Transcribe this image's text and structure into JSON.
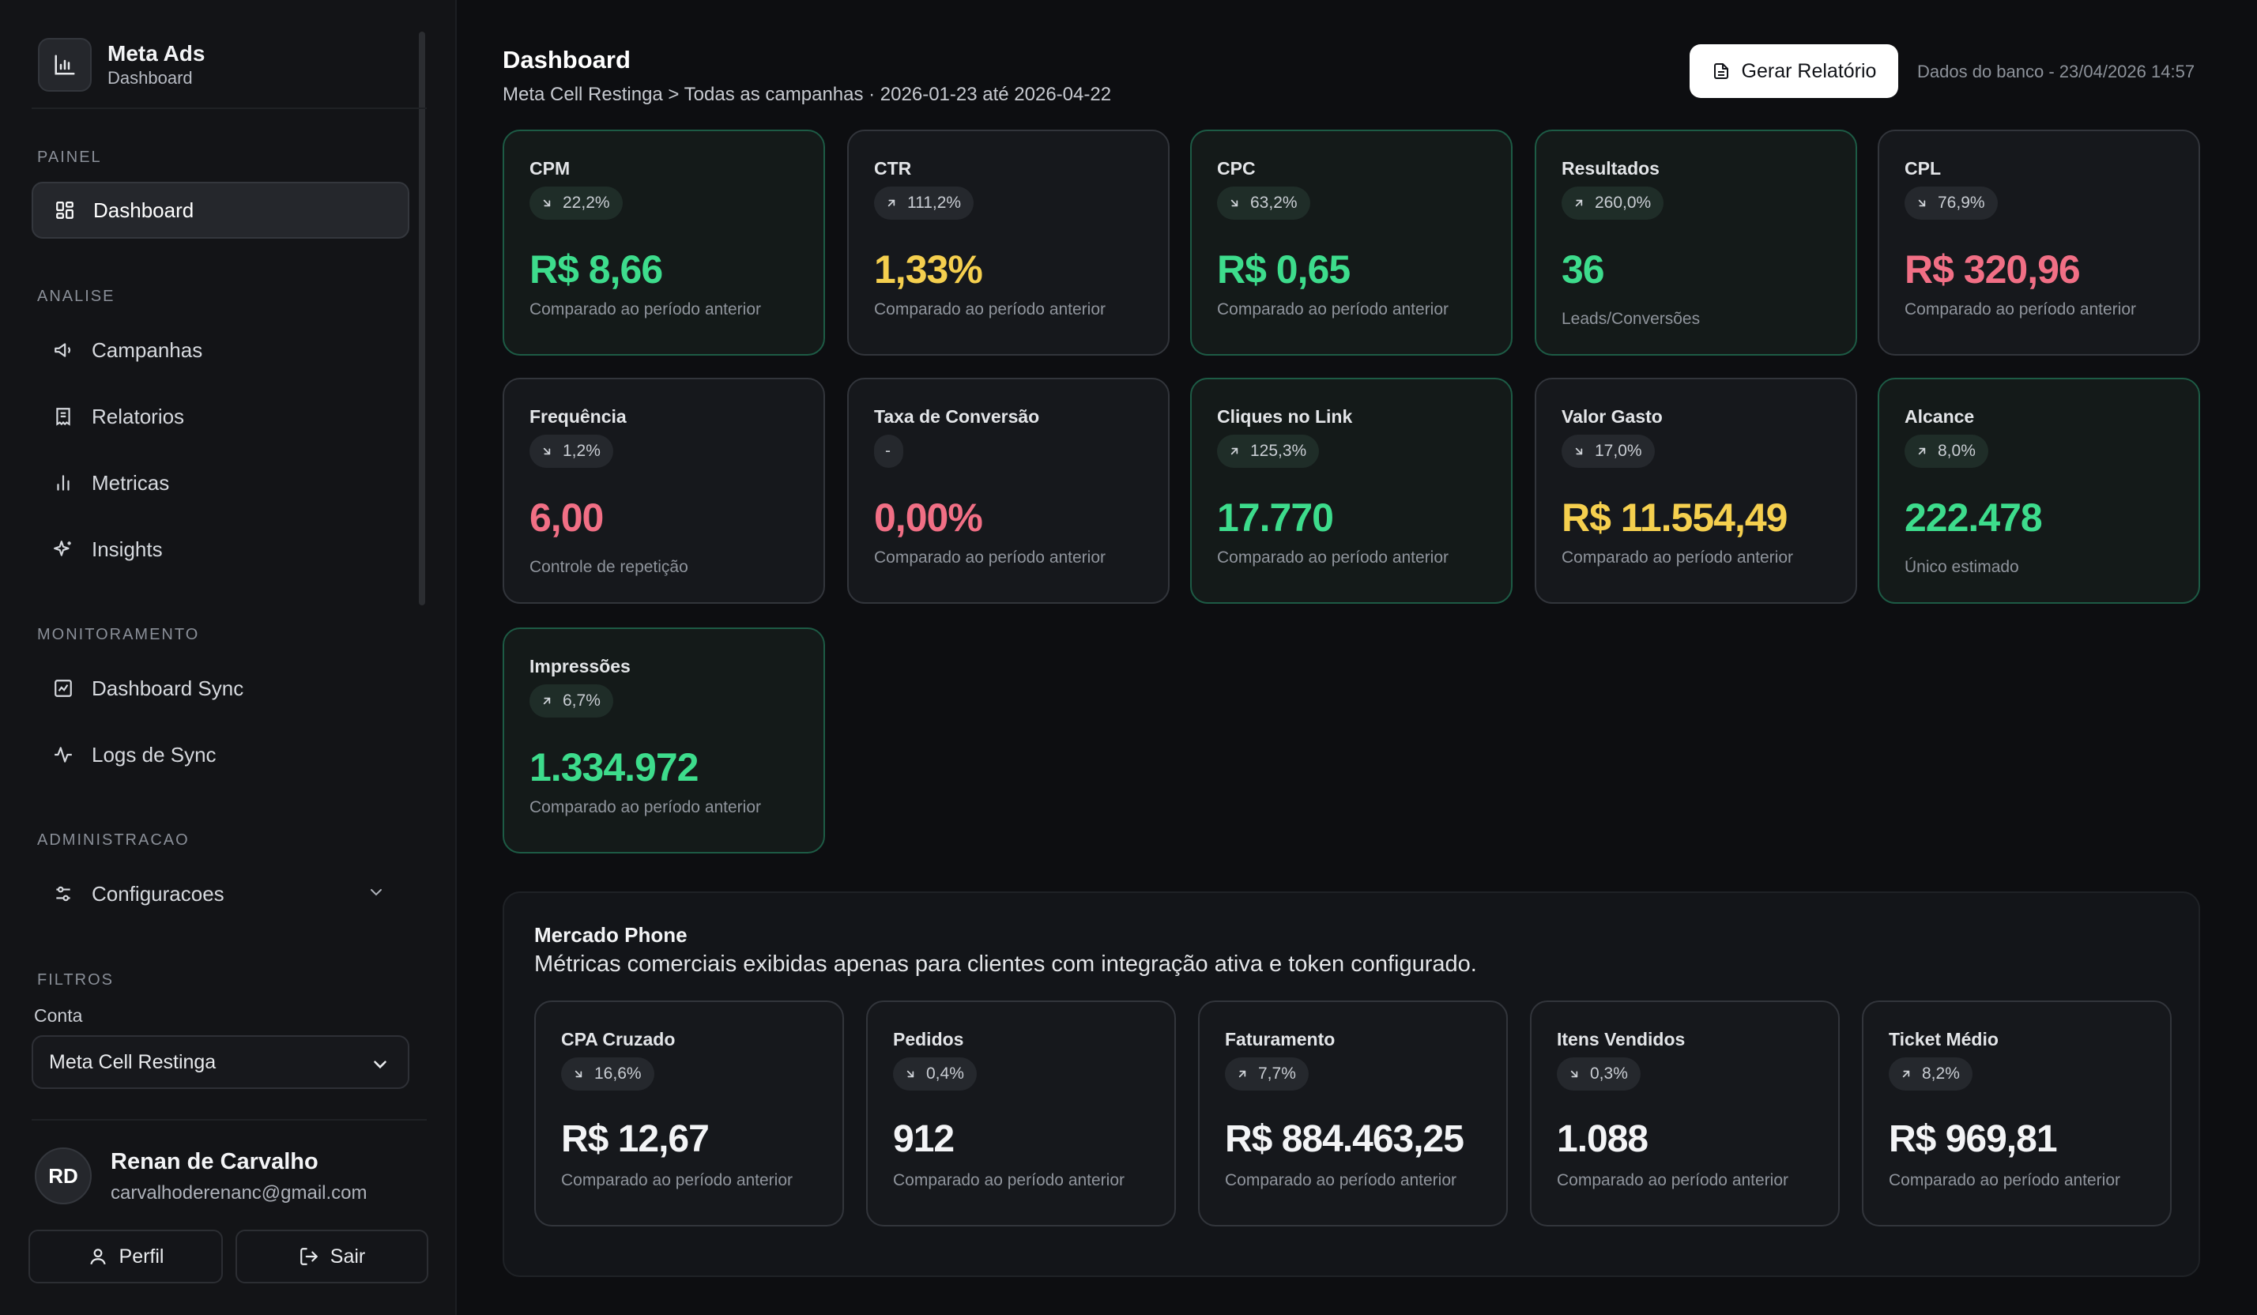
{
  "brand": {
    "title": "Meta Ads",
    "subtitle": "Dashboard"
  },
  "sidebar": {
    "sections": {
      "painel": "PAINEL",
      "analise": "ANALISE",
      "monitoramento": "MONITORAMENTO",
      "administracao": "ADMINISTRACAO",
      "filtros": "FILTROS"
    },
    "items": {
      "dashboard": "Dashboard",
      "campanhas": "Campanhas",
      "relatorios": "Relatorios",
      "metricas": "Metricas",
      "insights": "Insights",
      "dashboard_sync": "Dashboard Sync",
      "logs_sync": "Logs de Sync",
      "configuracoes": "Configuracoes"
    },
    "active": "dashboard",
    "filter": {
      "label": "Conta",
      "selected": "Meta Cell Restinga"
    }
  },
  "user": {
    "initials": "RD",
    "name": "Renan de Carvalho",
    "email": "carvalhoderenanc@gmail.com",
    "profile_label": "Perfil",
    "logout_label": "Sair"
  },
  "header": {
    "title": "Dashboard",
    "breadcrumb": "Meta Cell Restinga > Todas as campanhas · 2026-01-23 até 2026-04-22",
    "report_button": "Gerar Relatório",
    "db_info": "Dados do banco - 23/04/2026 14:57"
  },
  "metrics": [
    {
      "title": "CPM",
      "delta": "22,2%",
      "dir": "down",
      "value": "R$ 8,66",
      "sub": "Comparado ao período anterior",
      "color": "#3ddc8c"
    },
    {
      "title": "CTR",
      "delta": "111,2%",
      "dir": "up",
      "value": "1,33%",
      "sub": "Comparado ao período anterior",
      "color": "#f5cf4e"
    },
    {
      "title": "CPC",
      "delta": "63,2%",
      "dir": "down",
      "value": "R$ 0,65",
      "sub": "Comparado ao período anterior",
      "color": "#3ddc8c"
    },
    {
      "title": "Resultados",
      "delta": "260,0%",
      "dir": "up",
      "value": "36",
      "sub": "Leads/Conversões",
      "color": "#3ddc8c"
    },
    {
      "title": "CPL",
      "delta": "76,9%",
      "dir": "down",
      "value": "R$ 320,96",
      "sub": "Comparado ao período anterior",
      "color": "#f16f85"
    },
    {
      "title": "Frequência",
      "delta": "1,2%",
      "dir": "down",
      "value": "6,00",
      "sub": "Controle de repetição",
      "color": "#f16f85"
    },
    {
      "title": "Taxa de Conversão",
      "delta": "-",
      "dir": "none",
      "value": "0,00%",
      "sub": "Comparado ao período anterior",
      "color": "#f16f85"
    },
    {
      "title": "Cliques no Link",
      "delta": "125,3%",
      "dir": "up",
      "value": "17.770",
      "sub": "Comparado ao período anterior",
      "color": "#3ddc8c"
    },
    {
      "title": "Valor Gasto",
      "delta": "17,0%",
      "dir": "down",
      "value": "R$ 11.554,49",
      "sub": "Comparado ao período anterior",
      "color": "#f5cf4e"
    },
    {
      "title": "Alcance",
      "delta": "8,0%",
      "dir": "up",
      "value": "222.478",
      "sub": "Único estimado",
      "color": "#3ddc8c"
    },
    {
      "title": "Impressões",
      "delta": "6,7%",
      "dir": "up",
      "value": "1.334.972",
      "sub": "Comparado ao período anterior",
      "color": "#3ddc8c"
    }
  ],
  "mercado_phone": {
    "title": "Mercado Phone",
    "subtitle": "Métricas comerciais exibidas apenas para clientes com integração ativa e token configurado.",
    "cards": [
      {
        "title": "CPA Cruzado",
        "delta": "16,6%",
        "dir": "down",
        "value": "R$ 12,67",
        "sub": "Comparado ao período anterior",
        "color": "#f3f4f6"
      },
      {
        "title": "Pedidos",
        "delta": "0,4%",
        "dir": "down",
        "value": "912",
        "sub": "Comparado ao período anterior",
        "color": "#f3f4f6"
      },
      {
        "title": "Faturamento",
        "delta": "7,7%",
        "dir": "up",
        "value": "R$ 884.463,25",
        "sub": "Comparado ao período anterior",
        "color": "#f3f4f6"
      },
      {
        "title": "Itens Vendidos",
        "delta": "0,3%",
        "dir": "down",
        "value": "1.088",
        "sub": "Comparado ao período anterior",
        "color": "#f3f4f6"
      },
      {
        "title": "Ticket Médio",
        "delta": "8,2%",
        "dir": "up",
        "value": "R$ 969,81",
        "sub": "Comparado ao período anterior",
        "color": "#f3f4f6"
      }
    ]
  }
}
